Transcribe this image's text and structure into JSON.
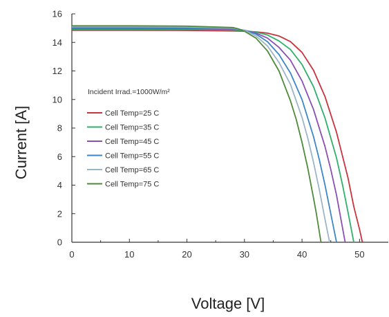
{
  "chart_data": {
    "type": "line",
    "title": "",
    "xlabel": "Voltage [V]",
    "ylabel": "Current [A]",
    "xlim": [
      0,
      55
    ],
    "ylim": [
      0,
      16
    ],
    "xticks": [
      0,
      10,
      20,
      30,
      40,
      50
    ],
    "yticks": [
      0,
      2,
      4,
      6,
      8,
      10,
      12,
      14,
      16
    ],
    "grid": false,
    "legend_position": "left",
    "annotation": "Incident Irrad.=1000W/m²",
    "series": [
      {
        "name": "Cell Temp=25 C",
        "color": "#c8323c",
        "x": [
          0,
          10,
          20,
          28,
          30,
          32,
          34,
          36,
          38,
          40,
          42,
          44,
          46,
          48,
          49,
          50,
          50.5
        ],
        "y": [
          14.85,
          14.85,
          14.84,
          14.8,
          14.78,
          14.74,
          14.65,
          14.45,
          14.05,
          13.3,
          12.05,
          10.2,
          7.7,
          4.5,
          2.5,
          0.9,
          0
        ]
      },
      {
        "name": "Cell Temp=35 C",
        "color": "#2fb06a",
        "x": [
          0,
          10,
          20,
          28,
          30,
          32,
          34,
          36,
          38,
          40,
          42,
          44,
          46,
          47,
          48,
          49
        ],
        "y": [
          14.92,
          14.92,
          14.91,
          14.86,
          14.82,
          14.72,
          14.52,
          14.1,
          13.5,
          12.45,
          10.9,
          8.7,
          5.9,
          4.1,
          2.1,
          0
        ]
      },
      {
        "name": "Cell Temp=45 C",
        "color": "#8a4fb4",
        "x": [
          0,
          10,
          20,
          28,
          30,
          32,
          34,
          36,
          38,
          40,
          42,
          44,
          45,
          46,
          47.5
        ],
        "y": [
          14.98,
          14.98,
          14.97,
          14.92,
          14.85,
          14.65,
          14.3,
          13.65,
          12.75,
          11.3,
          9.3,
          6.7,
          5.1,
          3.3,
          0
        ]
      },
      {
        "name": "Cell Temp=55 C",
        "color": "#3a86c8",
        "x": [
          0,
          10,
          20,
          28,
          30,
          32,
          34,
          36,
          38,
          40,
          42,
          43,
          44,
          45,
          46
        ],
        "y": [
          15.04,
          15.04,
          15.03,
          14.96,
          14.86,
          14.58,
          14.05,
          13.15,
          11.85,
          10.0,
          7.4,
          5.8,
          4.0,
          2.0,
          0
        ]
      },
      {
        "name": "Cell Temp=65 C",
        "color": "#9ab4c8",
        "x": [
          0,
          10,
          20,
          28,
          30,
          32,
          34,
          36,
          38,
          40,
          41,
          42,
          43,
          44,
          44.8
        ],
        "y": [
          15.1,
          15.1,
          15.08,
          15.0,
          14.85,
          14.45,
          13.75,
          12.6,
          11.05,
          8.75,
          7.3,
          5.6,
          3.7,
          1.6,
          0
        ]
      },
      {
        "name": "Cell Temp=75 C",
        "color": "#4e8a3a",
        "x": [
          0,
          10,
          20,
          28,
          29,
          30,
          32,
          34,
          36,
          38,
          39,
          40,
          41,
          42,
          42.5,
          43.3
        ],
        "y": [
          15.16,
          15.16,
          15.14,
          15.04,
          14.94,
          14.78,
          14.3,
          13.4,
          12.0,
          9.9,
          8.6,
          7.0,
          5.2,
          3.1,
          2.0,
          0
        ]
      }
    ]
  }
}
